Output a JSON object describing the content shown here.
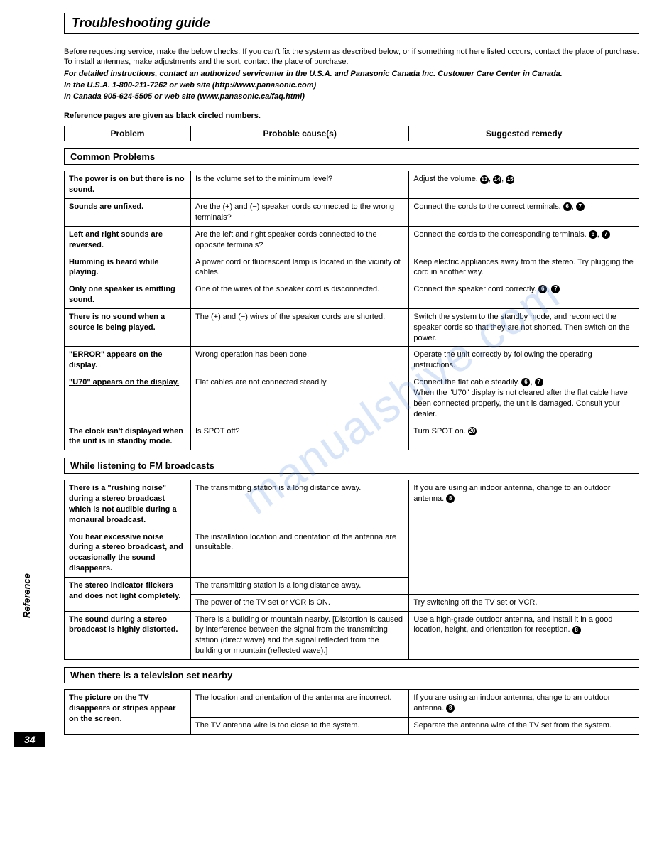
{
  "page": {
    "title": "Troubleshooting guide",
    "side_label": "Reference",
    "page_number": "34",
    "watermark": "manualshive.com"
  },
  "intro": {
    "p1": "Before requesting service, make the below checks. If you can't fix the system as described below, or if something not here listed occurs, contact the place of purchase. To install antennas, make adjustments and the sort, contact the place of purchase.",
    "p2": "For detailed instructions, contact an authorized servicenter in the U.S.A. and Panasonic Canada Inc. Customer Care Center in Canada.",
    "p3": "In the U.S.A. 1-800-211-7262 or web site (http://www.panasonic.com)",
    "p4": "In Canada 905-624-5505 or web site (www.panasonic.ca/faq.html)",
    "refnote": "Reference pages are given as black circled numbers."
  },
  "header": {
    "col1": "Problem",
    "col2": "Probable cause(s)",
    "col3": "Suggested remedy"
  },
  "sections": [
    {
      "title": "Common Problems",
      "rows": [
        {
          "problem": "The power is on but there is no sound.",
          "cause": "Is the volume set to the minimum level?",
          "remedy": "Adjust the volume.",
          "remedy_refs": [
            "13",
            "14",
            "15"
          ]
        },
        {
          "problem": "Sounds are unfixed.",
          "cause": "Are the (+) and (−) speaker cords connected to the wrong terminals?",
          "remedy": "Connect the cords to the correct terminals.",
          "remedy_refs": [
            "6",
            "7"
          ]
        },
        {
          "problem": "Left and right sounds are reversed.",
          "cause": "Are the left and right speaker cords connected to the opposite terminals?",
          "remedy": "Connect the cords to the corresponding terminals.",
          "remedy_refs": [
            "6",
            "7"
          ]
        },
        {
          "problem": "Humming is heard while playing.",
          "cause": "A power cord or fluorescent lamp is located in the vicinity of cables.",
          "remedy": "Keep electric appliances away from the stereo. Try plugging the cord in another way.",
          "remedy_refs": []
        },
        {
          "problem": "Only one speaker is emitting sound.",
          "cause": "One of the wires of the speaker cord is disconnected.",
          "remedy": "Connect the speaker cord correctly.",
          "remedy_refs": [
            "6",
            "7"
          ]
        },
        {
          "problem": "There is no sound when a source is being played.",
          "cause": "The (+) and (−) wires of the speaker cords are shorted.",
          "remedy": "Switch the system to the standby mode, and reconnect the speaker cords so that they are not shorted. Then switch on the power.",
          "remedy_refs": []
        },
        {
          "problem": "\"ERROR\" appears on the display.",
          "cause": "Wrong operation has been done.",
          "remedy": "Operate the unit correctly by following the operating instructions.",
          "remedy_refs": []
        },
        {
          "problem": "\"U70\" appears on the display.",
          "underline": true,
          "cause": "Flat cables are not connected steadily.",
          "remedy": "Connect the flat cable steadily. ",
          "remedy_refs": [
            "6",
            "7"
          ],
          "remedy_extra": "When the \"U70\" display is not cleared after the flat cable have been connected properly, the unit is damaged. Consult your dealer."
        },
        {
          "problem": "The clock isn't displayed when the unit is in standby mode.",
          "cause": "Is SPOT off?",
          "remedy": "Turn SPOT on.",
          "remedy_refs": [
            "20"
          ]
        }
      ]
    },
    {
      "title": "While listening to FM broadcasts",
      "rows": [
        {
          "problem": "There is a \"rushing noise\" during a stereo broadcast which is not audible during a monaural broadcast.",
          "cause": "The transmitting station is a long distance away.",
          "remedy": "If you are using an indoor antenna, change to an outdoor antenna.",
          "remedy_refs": [
            "8"
          ],
          "remedy_rowspan": 3
        },
        {
          "problem": "You hear excessive noise during a stereo broadcast, and occasionally the sound disappears.",
          "cause": "The installation location and orientation of the antenna are unsuitable."
        },
        {
          "problem": "The stereo indicator flickers and does not light completely.",
          "problem_rowspan": 2,
          "cause": "The transmitting station is a long distance away."
        },
        {
          "cause": "The power of the TV set or VCR is ON.",
          "remedy": "Try switching off the TV set or VCR.",
          "remedy_refs": []
        },
        {
          "problem": "The sound during a stereo broadcast is highly distorted.",
          "cause": "There is a building or mountain nearby. [Distortion is caused by interference between the signal from the transmitting station (direct wave) and the signal reflected from the building or mountain (reflected wave).]",
          "remedy": "Use a high-grade outdoor antenna, and install it in a good location, height, and orientation for reception.",
          "remedy_refs": [
            "8"
          ]
        }
      ]
    },
    {
      "title": "When there is a television set nearby",
      "rows": [
        {
          "problem": "The picture on the TV disappears or stripes appear on the screen.",
          "problem_rowspan": 2,
          "cause": "The location and orientation of the antenna are incorrect.",
          "remedy": "If you are using an indoor antenna, change to an outdoor antenna.",
          "remedy_refs": [
            "8"
          ]
        },
        {
          "cause": "The TV antenna wire is too close to the system.",
          "remedy": "Separate the antenna wire of the TV set from the system.",
          "remedy_refs": []
        }
      ]
    }
  ],
  "layout": {
    "col_widths_pct": [
      22,
      38,
      40
    ],
    "colors": {
      "text": "#000000",
      "background": "#ffffff",
      "border": "#000000",
      "watermark": "rgba(100,150,230,0.25)"
    },
    "fonts": {
      "body_size": 11,
      "title_size": 18,
      "section_header_size": 13
    }
  }
}
